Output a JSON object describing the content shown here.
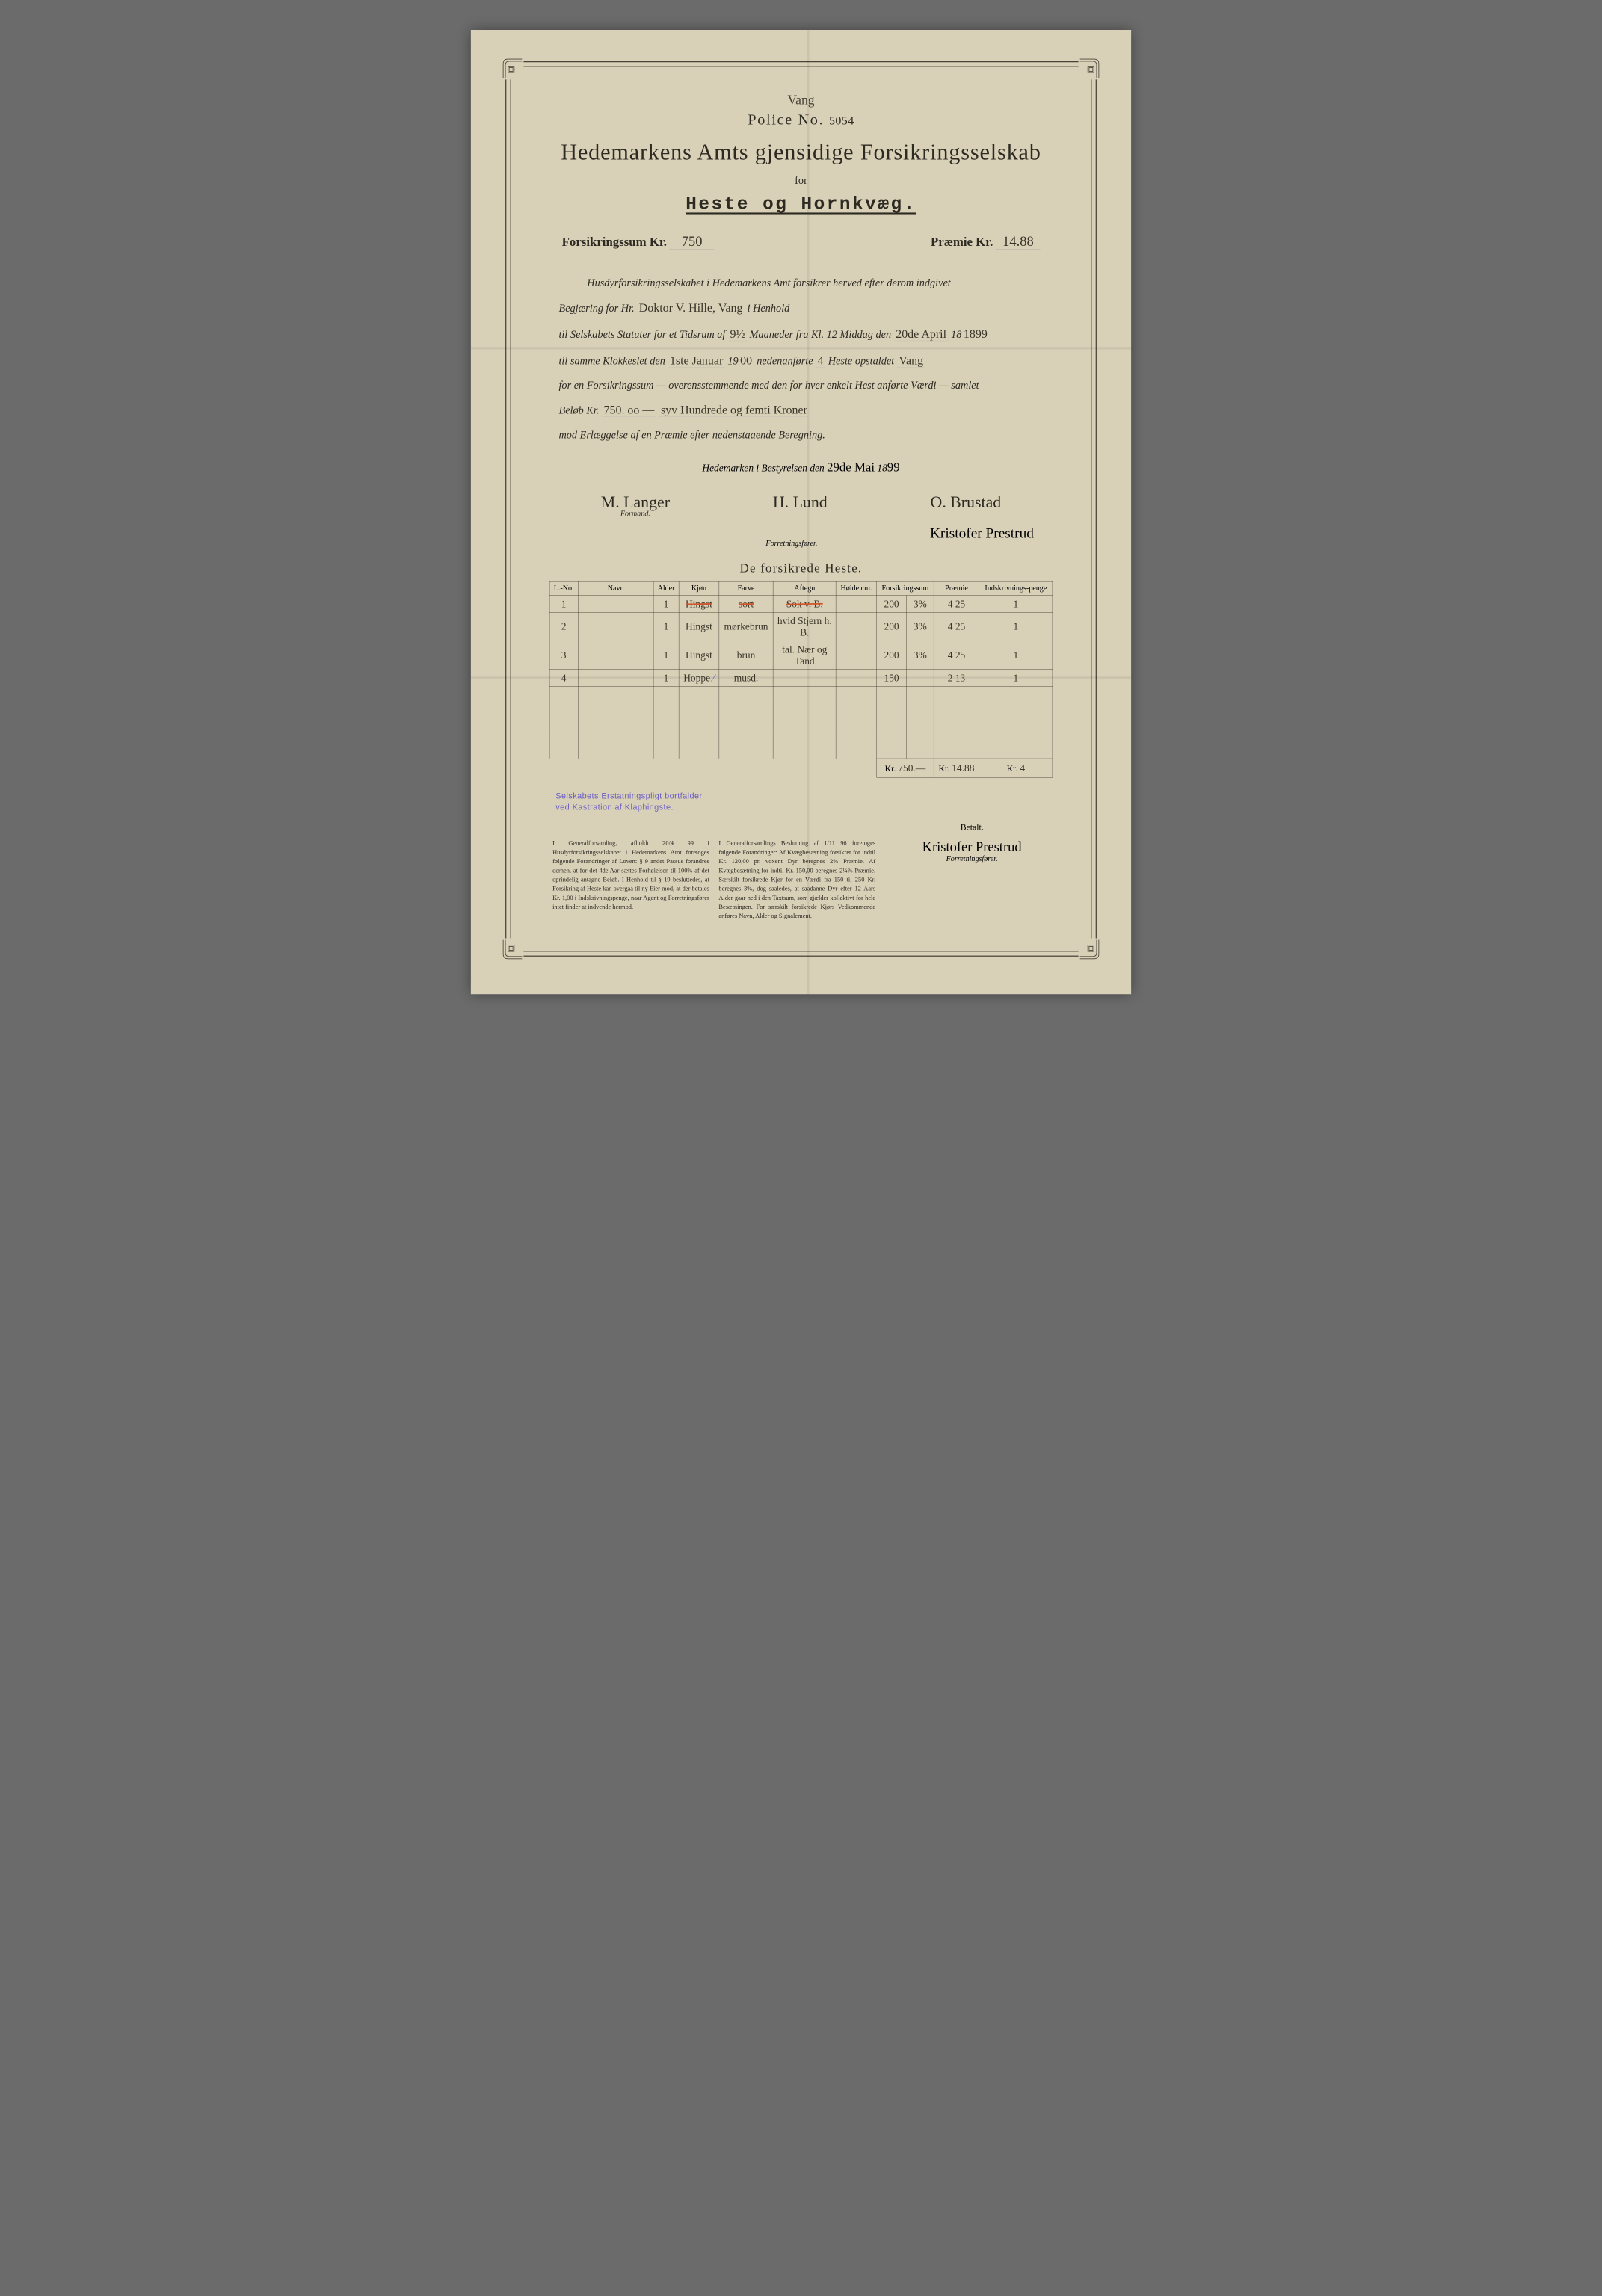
{
  "header": {
    "top_script": "Vang",
    "police_label": "Police No.",
    "police_no": "5054",
    "main_title": "Hedemarkens Amts gjensidige Forsikringsselskab",
    "for_label": "for",
    "subtitle": "Heste og Hornkvæg."
  },
  "amounts": {
    "sum_label": "Forsikringssum Kr.",
    "sum_value": "750",
    "premium_label": "Præmie Kr.",
    "premium_value": "14.88"
  },
  "body": {
    "line1_pre": "Husdyrforsikringsselskabet i Hedemarkens Amt forsikrer herved efter derom indgivet",
    "line2_pre": "Begjæring for Hr.",
    "hr_value": "Doktor V. Hille,  Vang",
    "line2_post": "i Henhold",
    "line3_pre": "til Selskabets Statuter for et Tidsrum af",
    "months": "9½",
    "line3_mid": "Maaneder fra Kl. 12 Middag den",
    "from_date": "20de April",
    "from_year": "1899",
    "line4_pre": "til samme Klokkeslet den",
    "to_date": "1ste Januar",
    "to_year": "1900",
    "line4_mid": "nedenanførte",
    "horse_count": "4",
    "line4_post": "Heste opstaldet",
    "stable": "Vang",
    "line5": "for en Forsikringssum — overensstemmende med den for hver enkelt Hest anførte Værdi — samlet",
    "line6_pre": "Beløb Kr.",
    "amount_num": "750. oo —",
    "amount_words": "syv Hundrede og femti Kroner",
    "line7": "mod Erlæggelse af en Præmie efter nedenstaaende Beregning."
  },
  "closing": {
    "place_date_pre": "Hedemarken i Bestyrelsen den",
    "date": "29de Mai",
    "year_prefix": "18",
    "year": "99"
  },
  "signatures": {
    "sig1": "M. Langer",
    "sig1_role": "Formand.",
    "sig2": "H. Lund",
    "sig3": "O. Brustad",
    "sig4": "Kristofer Prestrud",
    "sig4_role": "Forretningsfører."
  },
  "table": {
    "title": "De forsikrede Heste.",
    "columns": [
      "L.-No.",
      "Navn",
      "Alder",
      "Kjøn",
      "Farve",
      "Aftegn",
      "Høide cm.",
      "Forsikringssum",
      "Præmie",
      "Indskrivnings-penge"
    ],
    "rows": [
      {
        "no": "1",
        "navn": "",
        "alder": "1",
        "kjon": "Hingst",
        "farve": "sort",
        "aftegn": "Sok v. B.",
        "hoide": "",
        "sum": "200",
        "rate": "3%",
        "premie": "4 25",
        "indskr": "1"
      },
      {
        "no": "2",
        "navn": "",
        "alder": "1",
        "kjon": "Hingst",
        "farve": "mørkebrun",
        "aftegn": "hvid Stjern h. B.",
        "hoide": "",
        "sum": "200",
        "rate": "3%",
        "premie": "4 25",
        "indskr": "1"
      },
      {
        "no": "3",
        "navn": "",
        "alder": "1",
        "kjon": "Hingst",
        "farve": "brun",
        "aftegn": "tal. Nær og Tand",
        "hoide": "",
        "sum": "200",
        "rate": "3%",
        "premie": "4 25",
        "indskr": "1"
      },
      {
        "no": "4",
        "navn": "",
        "alder": "1",
        "kjon": "Hoppe",
        "farve": "musd.",
        "aftegn": "",
        "hoide": "",
        "sum": "150",
        "rate": "",
        "premie": "2 13",
        "indskr": "1"
      }
    ],
    "totals": {
      "sum_label": "Kr.",
      "sum": "750.—",
      "premie_label": "Kr.",
      "premie": "14.88",
      "indskr_label": "Kr.",
      "indskr": "4"
    }
  },
  "stamp": {
    "line1": "Selskabets Erstatningspligt bortfalder",
    "line2": "ved Kastration af Klaphingste."
  },
  "betalt_label": "Betalt.",
  "footer_sig": "Kristofer Prestrud",
  "footer_sig_role": "Forretningsfører.",
  "fineprint": {
    "col1": "I Generalforsamling, afholdt 20/4 99 i Husdyrforsikringsselskabet i Hedemarkens Amt foretoges følgende Forandringer af Loven:\n§ 9 andet Passus forandres derhen, at for det 4de Aar sættes Forhøielsen til 100% af det oprindelig antagne Beløb.\nI Henhold til § 19 besluttedes, at Forsikring af Heste kan overgaa til ny Eier mod, at der betales Kr. 1,00 i Indskrivningspenge, naar Agent og Forretningsfører intet finder at indvende hermod.",
    "col2": "I Generalforsamlings Beslutning af 1/11 96 foretoges følgende Forandringer:\nAf Kvægbesætning forsikret for indtil Kr. 120,00 pr. voxent Dyr beregnes 2% Præmie.\nAf Kvægbesætning for indtil Kr. 150,00 beregnes 2¼% Præmie. Særskilt forsikrede Kjør for en Værdi fra 150 til 250 Kr. beregnes 3%, dog saaledes, at saadanne Dyr efter 12 Aars Alder gaar ned i den Taxtsum, som gjælder kollektivt for hele Besætningen. For særskilt forsikrede Kjørs Vedkommende anføres Navn, Alder og Signalement."
  },
  "colors": {
    "paper": "#d9d0b8",
    "ink": "#2d2a22",
    "border": "#4a4438",
    "handwriting": "#3a3528",
    "red_pencil": "#d1542a",
    "blue_pencil": "#4a70d4",
    "stamp": "#6b5fc4"
  }
}
